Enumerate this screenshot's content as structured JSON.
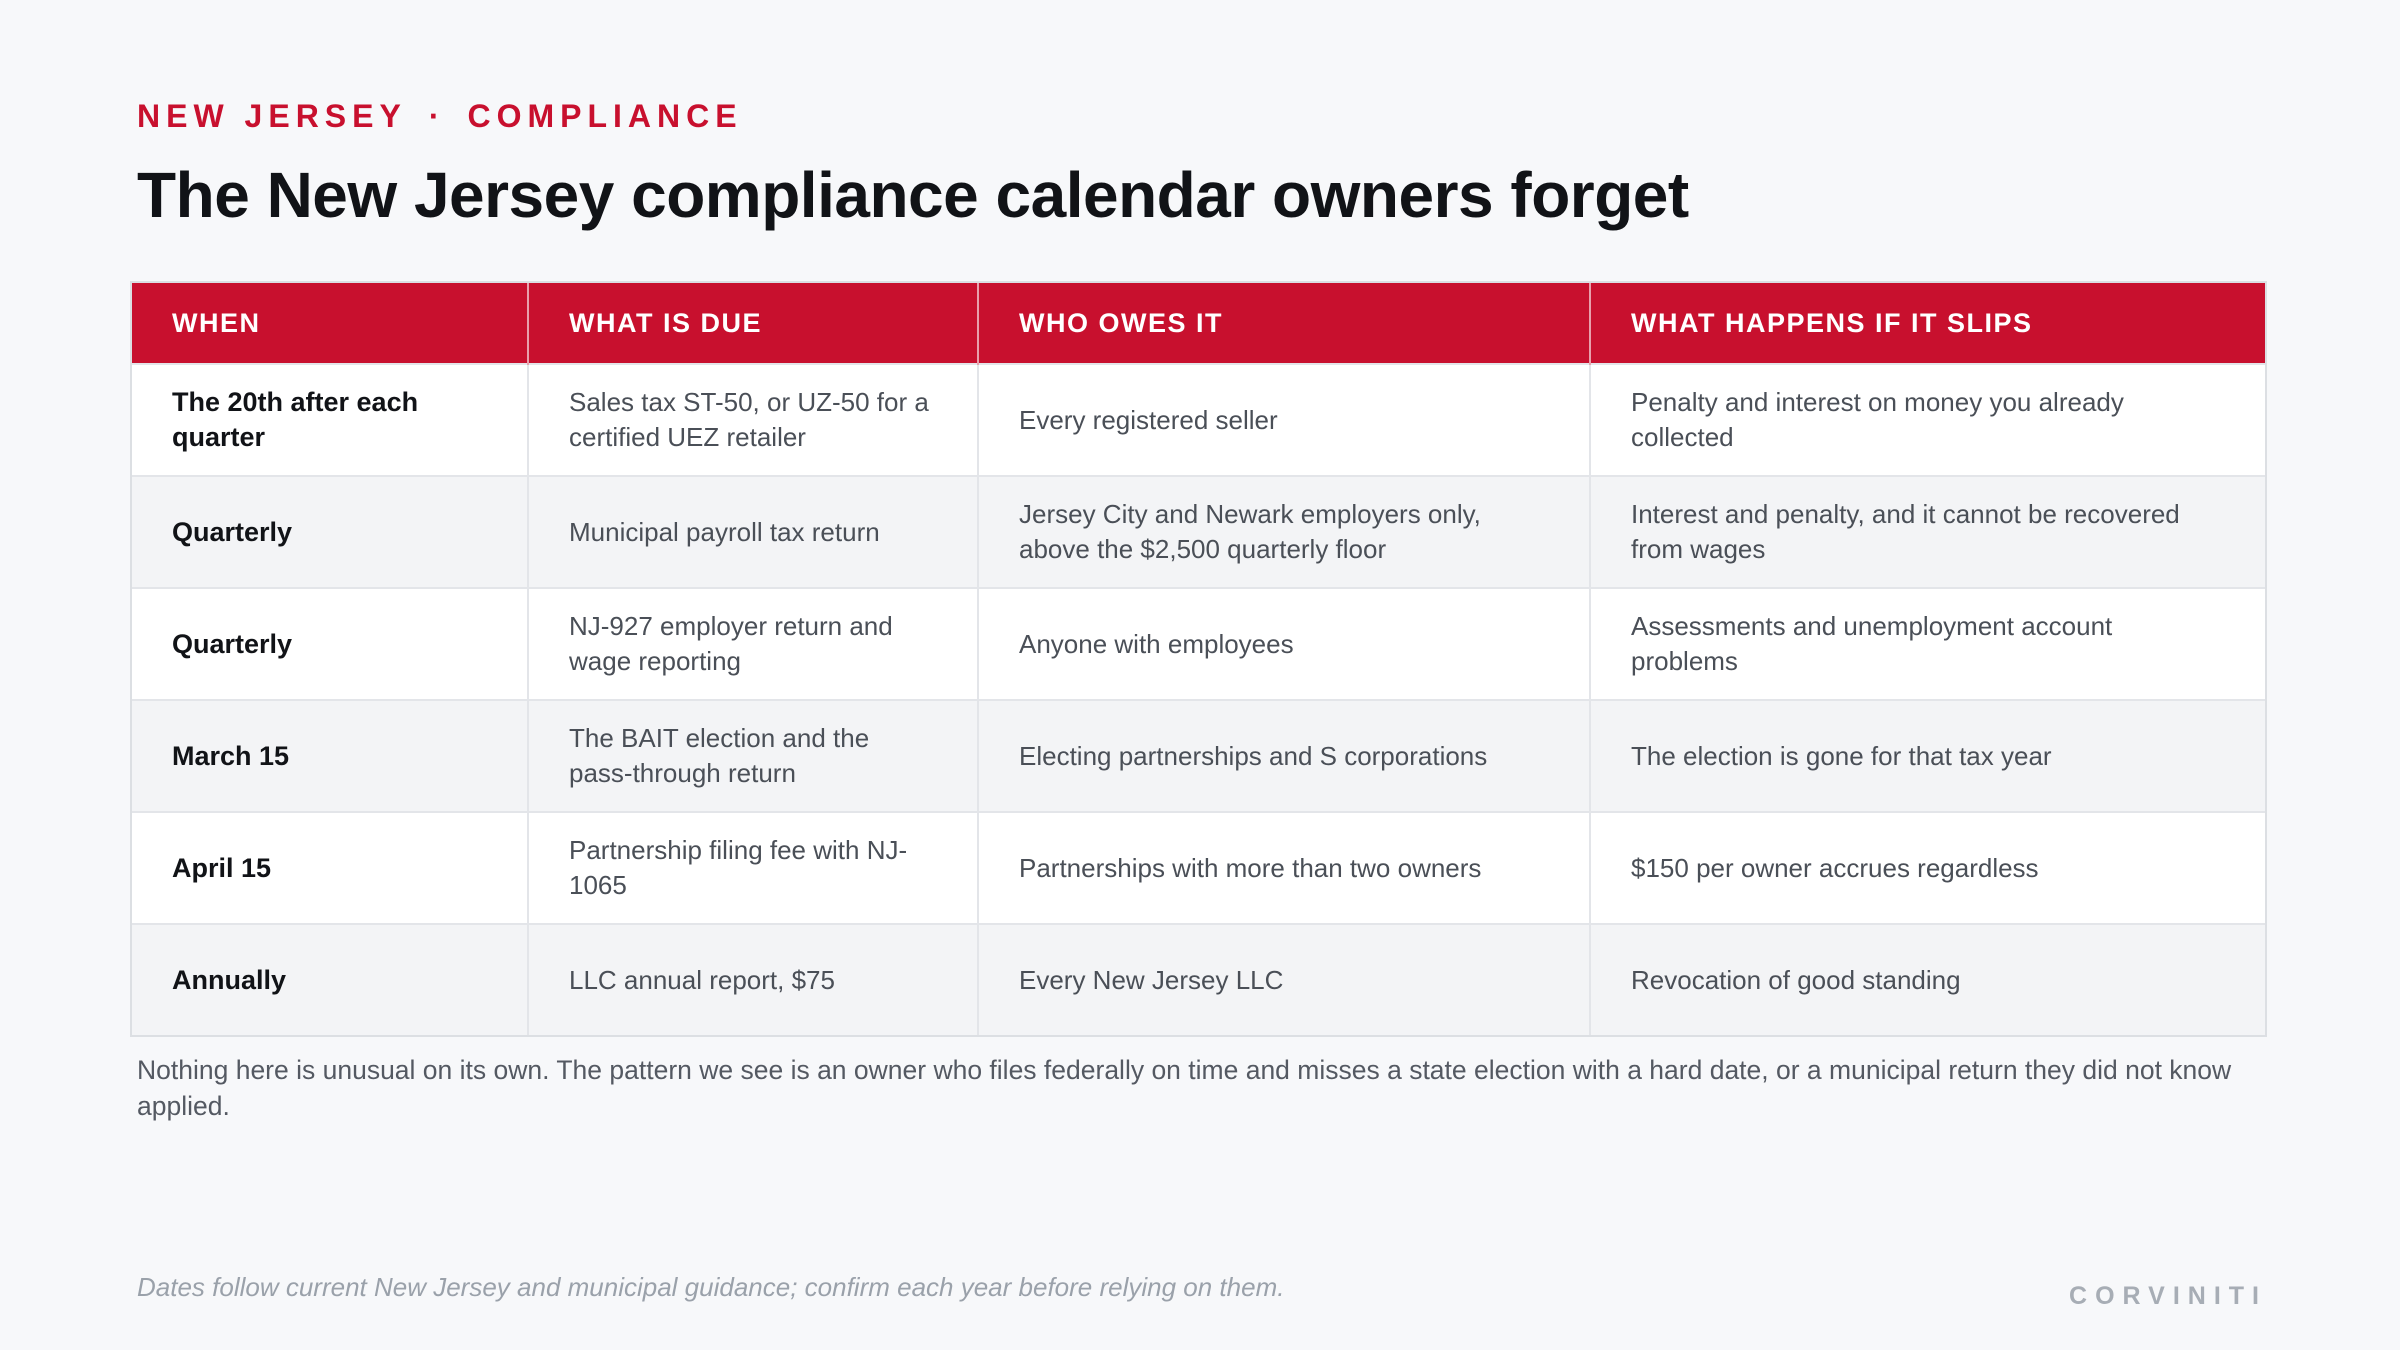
{
  "header": {
    "eyebrow_left": "NEW JERSEY",
    "eyebrow_separator": "·",
    "eyebrow_right": "COMPLIANCE",
    "title": "The New Jersey compliance calendar owners forget"
  },
  "table": {
    "columns": [
      "WHEN",
      "WHAT IS DUE",
      "WHO OWES IT",
      "WHAT HAPPENS IF IT SLIPS"
    ],
    "rows": [
      {
        "when": "The 20th after each quarter",
        "what": "Sales tax ST-50, or UZ-50 for a certified UEZ retailer",
        "who": "Every registered seller",
        "consequence": "Penalty and interest on money you already collected"
      },
      {
        "when": "Quarterly",
        "what": "Municipal payroll tax return",
        "who": "Jersey City and Newark employers only, above the $2,500 quarterly floor",
        "consequence": "Interest and penalty, and it cannot be recovered from wages"
      },
      {
        "when": "Quarterly",
        "what": "NJ-927 employer return and wage reporting",
        "who": "Anyone with employees",
        "consequence": "Assessments and unemployment account problems"
      },
      {
        "when": "March 15",
        "what": "The BAIT election and the pass-through return",
        "who": "Electing partnerships and S corporations",
        "consequence": "The election is gone for that tax year"
      },
      {
        "when": "April 15",
        "what": "Partnership filing fee with NJ-1065",
        "who": "Partnerships with more than two owners",
        "consequence": "$150 per owner accrues regardless"
      },
      {
        "when": "Annually",
        "what": "LLC annual report, $75",
        "who": "Every New Jersey LLC",
        "consequence": "Revocation of good standing"
      }
    ]
  },
  "note": "Nothing here is unusual on its own. The pattern we see is an owner who files federally on time and misses a state election with a hard date, or a municipal return they did not know applied.",
  "footnote": "Dates follow current New Jersey and municipal guidance; confirm each year before relying on them.",
  "brand": "CORVINITI",
  "colors": {
    "accent": "#c8102e",
    "background": "#f7f8fa",
    "row_alt": "#f3f4f6",
    "muted_text": "#9aa1aa"
  }
}
